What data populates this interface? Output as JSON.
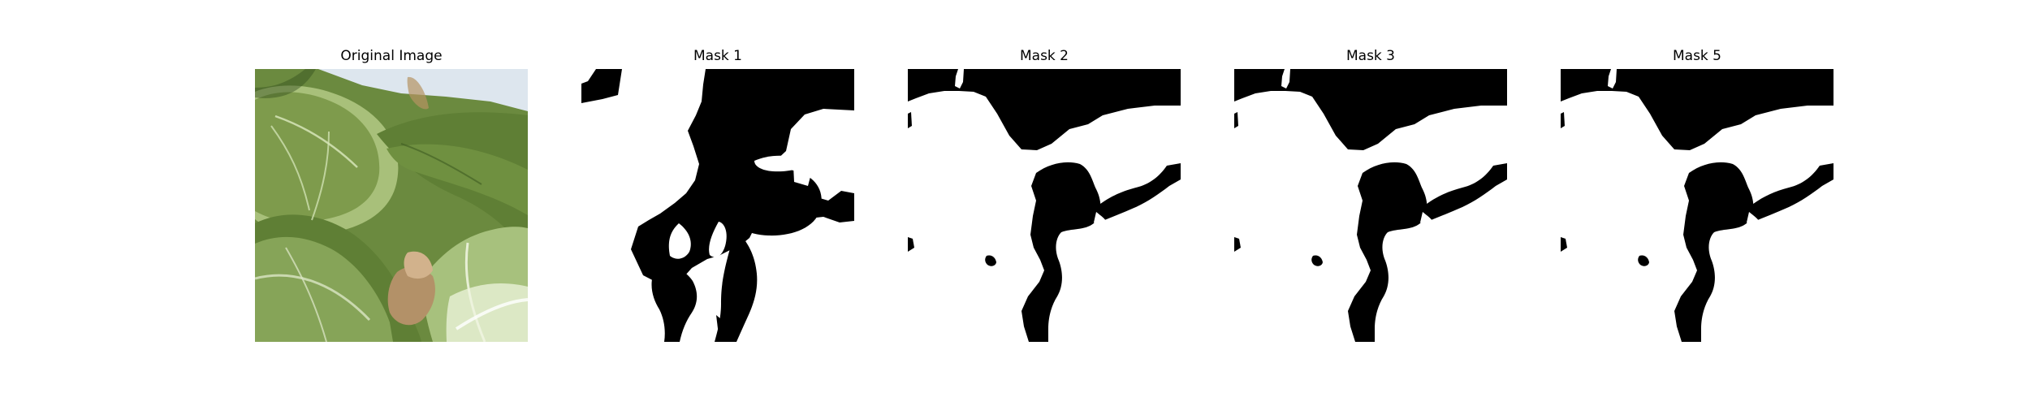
{
  "panels": [
    {
      "title": "Original Image"
    },
    {
      "title": "Mask 1"
    },
    {
      "title": "Mask 2"
    },
    {
      "title": "Mask 3"
    },
    {
      "title": "Mask 5"
    }
  ],
  "colors": {
    "mask_foreground": "#ffffff",
    "mask_background": "#000000",
    "leaf_dark": "#4f6f2c",
    "leaf_mid": "#6f8f43",
    "leaf_light": "#a8c07a",
    "sky": "#dde6ee",
    "stem": "#d7e4bf",
    "brown": "#a88a62"
  }
}
